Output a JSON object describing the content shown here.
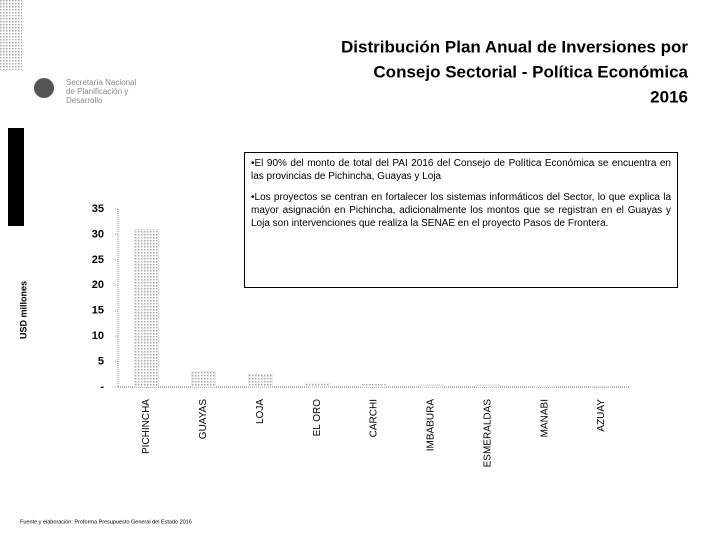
{
  "chart_data": {
    "type": "bar",
    "title": [
      "Distribución Plan Anual de Inversiones  por",
      "Consejo Sectorial  - Política Económica",
      "2016"
    ],
    "logo": "Secretaría Nacional de Planificación y Desarrollo",
    "annotations": [
      "•El 90%  del monto de total del PAI 2016 del Consejo de Política Económica se encuentra en las provincias de Pichincha, Guayas y Loja",
      "•Los proyectos  se centran en fortalecer los sistemas informáticos del Sector, lo que explica la  mayor asignación en Pichincha, adicionalmente los montos que se registran en el Guayas y Loja son intervenciones que realiza la SENAE en el proyecto Pasos de Frontera."
    ],
    "source": "Fuente y elaboración: Proforma Presupuesto General del Estado 2016",
    "ylabel": "USD millones",
    "categories": [
      "PICHINCHA",
      "GUAYAS",
      "LOJA",
      "EL ORO",
      "CARCHI",
      "IMBABURA",
      "ESMERALDAS",
      "MANABI",
      "AZUAY"
    ],
    "values": [
      31,
      3,
      2.5,
      0.8,
      0.5,
      0.4,
      0.4,
      0.2,
      0.1
    ],
    "color": "#a8a8a8",
    "ylim": [
      0,
      35
    ],
    "yticks": [
      {
        "value": 0,
        "label": "-"
      },
      5,
      10,
      15,
      20,
      25,
      30,
      35
    ]
  }
}
